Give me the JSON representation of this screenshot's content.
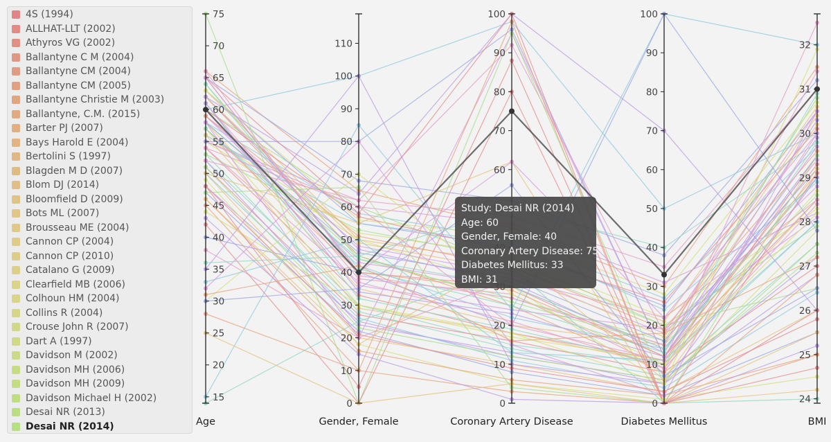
{
  "legend": {
    "items": [
      {
        "label": "4S (1994)",
        "color": "#e0868a"
      },
      {
        "label": "ALLHAT-LLT (2002)",
        "color": "#e08b88"
      },
      {
        "label": "Athyros VG (2002)",
        "color": "#e09186"
      },
      {
        "label": "Ballantyne C M (2004)",
        "color": "#e09785"
      },
      {
        "label": "Ballantyne CM (2004)",
        "color": "#e09c84"
      },
      {
        "label": "Ballantyne CM (2005)",
        "color": "#e0a183"
      },
      {
        "label": "Ballantyne Christie M (2003)",
        "color": "#e0a683"
      },
      {
        "label": "Ballantyne, C.M. (2015)",
        "color": "#e0ab83"
      },
      {
        "label": "Barter PJ (2007)",
        "color": "#e0b083"
      },
      {
        "label": "Bays Harold E (2004)",
        "color": "#e0b483"
      },
      {
        "label": "Bertolini S (1997)",
        "color": "#e0b884"
      },
      {
        "label": "Blagden M D (2007)",
        "color": "#e0bc85"
      },
      {
        "label": "Blom DJ (2014)",
        "color": "#e0bf86"
      },
      {
        "label": "Bloomfield D (2009)",
        "color": "#e0c387"
      },
      {
        "label": "Bots ML (2007)",
        "color": "#e0c688"
      },
      {
        "label": "Brousseau ME (2004)",
        "color": "#dfc889"
      },
      {
        "label": "Cannon CP (2004)",
        "color": "#dfcb8a"
      },
      {
        "label": "Cannon CP (2010)",
        "color": "#ddcd8b"
      },
      {
        "label": "Catalano G (2009)",
        "color": "#dcd08c"
      },
      {
        "label": "Clearfield MB (2006)",
        "color": "#dbd28c"
      },
      {
        "label": "Colhoun HM (2004)",
        "color": "#d9d48c"
      },
      {
        "label": "Collins R (2004)",
        "color": "#d6d68b"
      },
      {
        "label": "Crouse John R (2007)",
        "color": "#d2d88a"
      },
      {
        "label": "Dart A (1997)",
        "color": "#cfd988"
      },
      {
        "label": "Davidson M (2002)",
        "color": "#cbda87"
      },
      {
        "label": "Davidson MH (2006)",
        "color": "#c7dc86"
      },
      {
        "label": "Davidson MH (2009)",
        "color": "#c3dd85"
      },
      {
        "label": "Davidson Michael H (2002)",
        "color": "#bfde84"
      },
      {
        "label": "Desai NR (2013)",
        "color": "#bbde84"
      },
      {
        "label": "Desai NR (2014)",
        "color": "#b7df84",
        "selected": true
      }
    ]
  },
  "tooltip": {
    "study": "Study: Desai NR (2014)",
    "age": "Age: 60",
    "gender": "Gender, Female: 40",
    "cad": "Coronary Artery Disease: 75",
    "dm": "Diabetes Mellitus: 33",
    "bmi": "BMI: 31"
  },
  "chart_data": {
    "type": "parallel-coordinates",
    "axes": [
      {
        "name": "Age",
        "range": [
          14,
          75
        ],
        "ticks": [
          15,
          20,
          25,
          30,
          35,
          40,
          45,
          50,
          55,
          60,
          65,
          70,
          75
        ],
        "tick_side": "right"
      },
      {
        "name": "Gender, Female",
        "range": [
          0,
          119
        ],
        "ticks": [
          0,
          10,
          20,
          30,
          40,
          50,
          60,
          70,
          80,
          90,
          100,
          110
        ],
        "tick_side": "left"
      },
      {
        "name": "Coronary Artery Disease",
        "range": [
          0,
          100
        ],
        "ticks": [
          0,
          10,
          20,
          30,
          40,
          50,
          60,
          70,
          80,
          90,
          100
        ],
        "tick_side": "left"
      },
      {
        "name": "Diabetes Mellitus",
        "range": [
          0,
          100
        ],
        "ticks": [
          0,
          10,
          20,
          30,
          40,
          50,
          60,
          70,
          80,
          90,
          100
        ],
        "tick_side": "left"
      },
      {
        "name": "BMI",
        "range": [
          23.9,
          32.7
        ],
        "ticks": [
          24,
          25,
          26,
          27,
          28,
          29,
          30,
          31,
          32
        ],
        "tick_side": "left"
      }
    ],
    "highlighted": {
      "study": "Desai NR (2014)",
      "values": [
        60,
        40,
        75,
        33,
        31
      ]
    },
    "palette": [
      "#e68a8f",
      "#e8a07a",
      "#e6c07a",
      "#d6dd7a",
      "#a8dc8c",
      "#8fd6c4",
      "#8cc8e0",
      "#9aa4e6",
      "#b89ae6",
      "#d69ae0",
      "#e69ac4"
    ],
    "lines": [
      [
        65,
        40,
        30,
        12,
        28.5
      ],
      [
        62,
        45,
        25,
        8,
        29.5
      ],
      [
        58,
        35,
        20,
        15,
        30.2
      ],
      [
        55,
        50,
        30,
        5,
        27.8
      ],
      [
        60,
        60,
        35,
        20,
        26.5
      ],
      [
        52,
        30,
        15,
        10,
        28
      ],
      [
        57,
        42,
        22,
        14,
        29
      ],
      [
        63,
        55,
        40,
        25,
        30.5
      ],
      [
        48,
        25,
        12,
        6,
        27.2
      ],
      [
        59,
        48,
        33,
        18,
        28.8
      ],
      [
        61,
        38,
        28,
        9,
        30
      ],
      [
        54,
        33,
        18,
        11,
        29.3
      ],
      [
        66,
        65,
        45,
        30,
        31.5
      ],
      [
        50,
        20,
        10,
        3,
        26
      ],
      [
        56,
        52,
        38,
        22,
        28.3
      ],
      [
        64,
        44,
        27,
        16,
        30.8
      ],
      [
        53,
        28,
        14,
        7,
        27.5
      ],
      [
        58,
        58,
        42,
        27,
        29.7
      ],
      [
        47,
        22,
        8,
        2,
        25.5
      ],
      [
        62,
        47,
        31,
        13,
        30.3
      ],
      [
        60,
        36,
        24,
        19,
        28.1
      ],
      [
        55,
        62,
        48,
        35,
        31
      ],
      [
        51,
        27,
        16,
        8,
        27
      ],
      [
        57,
        40,
        29,
        12,
        29.1
      ],
      [
        63,
        50,
        36,
        21,
        30.6
      ],
      [
        49,
        18,
        5,
        1,
        24.5
      ],
      [
        58,
        45,
        26,
        15,
        28.6
      ],
      [
        61,
        32,
        19,
        10,
        29.8
      ],
      [
        56,
        55,
        41,
        24,
        28.9
      ],
      [
        65,
        68,
        52,
        38,
        31.2
      ],
      [
        52,
        24,
        13,
        5,
        26.8
      ],
      [
        59,
        43,
        30,
        14,
        29.4
      ],
      [
        54,
        37,
        21,
        9,
        28.4
      ],
      [
        60,
        57,
        39,
        26,
        30.1
      ],
      [
        46,
        16,
        6,
        2,
        25
      ],
      [
        62,
        49,
        34,
        17,
        30.4
      ],
      [
        57,
        30,
        17,
        11,
        28.7
      ],
      [
        53,
        53,
        37,
        20,
        27.9
      ],
      [
        64,
        41,
        25,
        13,
        30.9
      ],
      [
        50,
        26,
        11,
        4,
        26.4
      ],
      [
        58,
        46,
        32,
        16,
        29.2
      ],
      [
        61,
        34,
        23,
        12,
        29.9
      ],
      [
        55,
        60,
        46,
        31,
        28.2
      ],
      [
        66,
        39,
        27,
        15,
        31.4
      ],
      [
        48,
        21,
        9,
        3,
        25.8
      ],
      [
        59,
        51,
        35,
        19,
        29.6
      ],
      [
        56,
        29,
        18,
        10,
        28.5
      ],
      [
        63,
        56,
        43,
        28,
        30.7
      ],
      [
        51,
        23,
        12,
        6,
        27.3
      ],
      [
        57,
        44,
        30,
        14,
        29
      ],
      [
        60,
        100,
        98,
        50,
        30
      ],
      [
        55,
        80,
        96,
        12,
        29.5
      ],
      [
        62,
        64,
        100,
        70,
        26
      ],
      [
        58,
        20,
        95,
        12,
        29.7
      ],
      [
        52,
        62,
        92,
        18,
        30.5
      ],
      [
        65,
        58,
        100,
        0,
        29.1
      ],
      [
        45,
        10,
        98,
        0,
        26.8
      ],
      [
        50,
        55,
        62,
        0,
        25.5
      ],
      [
        30,
        70,
        28,
        10,
        28.2
      ],
      [
        75,
        0,
        95,
        5,
        27.5
      ],
      [
        14,
        25,
        35,
        0,
        24
      ],
      [
        15,
        85,
        24,
        100,
        32
      ],
      [
        40,
        40,
        20,
        100,
        27.8
      ],
      [
        35,
        100,
        10,
        5,
        29
      ],
      [
        32,
        80,
        15,
        2,
        30.5
      ],
      [
        38,
        20,
        32,
        22,
        28.5
      ],
      [
        42,
        0,
        80,
        0,
        26
      ],
      [
        28,
        10,
        3,
        0,
        25
      ],
      [
        25,
        0,
        5,
        0,
        24.2
      ],
      [
        44,
        30,
        18,
        5,
        31.9
      ],
      [
        47,
        66,
        4,
        0,
        29.5
      ],
      [
        36,
        45,
        50,
        40,
        29.8
      ],
      [
        33,
        50,
        13,
        11,
        28
      ],
      [
        30,
        35,
        56,
        7,
        26.5
      ],
      [
        43,
        15,
        1,
        0,
        25.2
      ],
      [
        65,
        40,
        62,
        22,
        30
      ],
      [
        54,
        60,
        20,
        11,
        32.5
      ],
      [
        48,
        5,
        88,
        0,
        24.7
      ],
      [
        31,
        42,
        16,
        18,
        27.2
      ],
      [
        46,
        18,
        38,
        6,
        29.2
      ]
    ]
  }
}
